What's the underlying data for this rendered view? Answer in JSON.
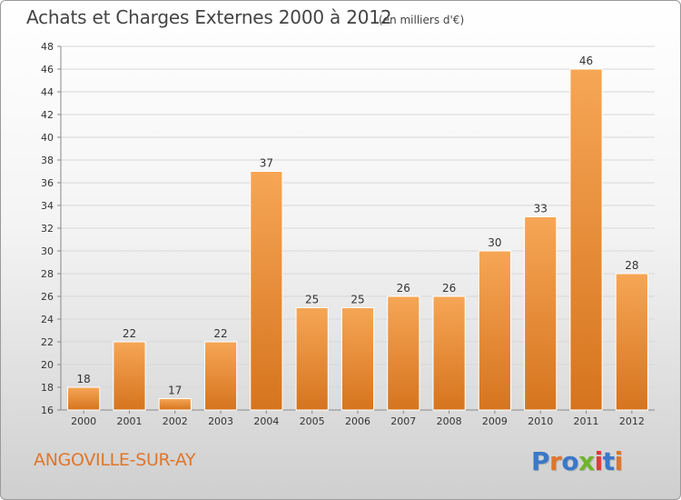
{
  "header": {
    "title": "Achats et Charges Externes 2000 à 2012",
    "unit": "(en milliers d'€)"
  },
  "footer": {
    "commune": "ANGOVILLE-SUR-AY",
    "logo_text": "Proxiti"
  },
  "colors": {
    "bar_light": "#f6a655",
    "bar_dark": "#d6741f",
    "commune_text": "#e0762a",
    "logo_letters": [
      "#3a78c9",
      "#e0762a",
      "#3a78c9",
      "#6fb52c",
      "#e03a3a",
      "#3a78c9",
      "#e0762a"
    ]
  },
  "chart_data": {
    "type": "bar",
    "title": "Achats et Charges Externes 2000 à 2012",
    "subtitle": "(en milliers d'€)",
    "xlabel": "",
    "ylabel": "",
    "categories": [
      "2000",
      "2001",
      "2002",
      "2003",
      "2004",
      "2005",
      "2006",
      "2007",
      "2008",
      "2009",
      "2010",
      "2011",
      "2012"
    ],
    "values": [
      18,
      22,
      17,
      22,
      37,
      25,
      25,
      26,
      26,
      30,
      33,
      46,
      28
    ],
    "ylim": [
      16,
      48
    ],
    "yticks": [
      16,
      18,
      20,
      22,
      24,
      26,
      28,
      30,
      32,
      34,
      36,
      38,
      40,
      42,
      44,
      46,
      48
    ],
    "grid": true,
    "legend": "none"
  }
}
